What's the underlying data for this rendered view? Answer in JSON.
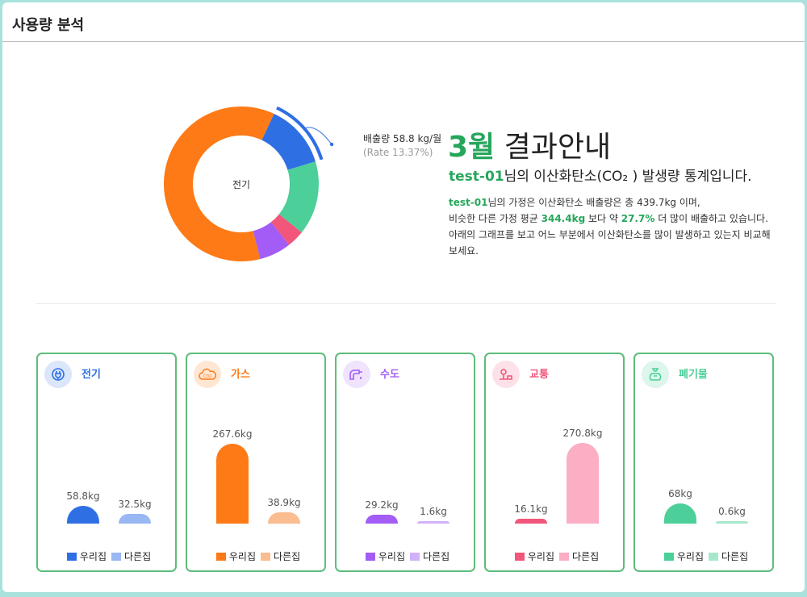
{
  "page": {
    "title": "사용량 분석"
  },
  "summary": {
    "month": "3월",
    "headline_rest": " 결과안내",
    "user": "test-01",
    "sub_text": "님의 이산화탄소(CO₂ ) 발생량 통계입니다.",
    "d1": "님의 가정은 이산화탄소 배출량은 총 439.7kg 이며,",
    "d2a": "비슷한 다른 가정 평균 ",
    "avg": "344.4kg",
    "d2b": " 보다 약 ",
    "pct": "27.7%",
    "d2c": " 더 많이 배출하고 있습니다.",
    "d3": "아래의 그래프를 보고 어느 부분에서 이산화탄소를 많이 발생하고 있는지 비교해 보세요."
  },
  "chart_data": [
    {
      "type": "pie",
      "center_label": "전기",
      "callout": {
        "main": "배출량 58.8 kg/월",
        "sub": "(Rate 13.37%)"
      },
      "slices": [
        {
          "label": "전기",
          "value": 58.8,
          "color": "#2f6fe4"
        },
        {
          "label": "폐기물",
          "value": 68,
          "color": "#4ccf98"
        },
        {
          "label": "교통",
          "value": 16.1,
          "color": "#f2567a"
        },
        {
          "label": "수도",
          "value": 29.2,
          "color": "#a35cf6"
        },
        {
          "label": "가스",
          "value": 267.6,
          "color": "#fd7a16"
        }
      ]
    },
    {
      "type": "bar",
      "title": "전기",
      "icon": "plug-icon",
      "categories": [
        "우리집",
        "다른집"
      ],
      "values": [
        58.8,
        32.5
      ],
      "labels": [
        "58.8kg",
        "32.5kg"
      ],
      "colors": [
        "#2f6fe4",
        "#98b7f3"
      ],
      "title_color": "#2f6fe4",
      "icon_bg": "#dbe6fb"
    },
    {
      "type": "bar",
      "title": "가스",
      "icon": "co2-cloud-icon",
      "categories": [
        "우리집",
        "다른집"
      ],
      "values": [
        267.6,
        38.9
      ],
      "labels": [
        "267.6kg",
        "38.9kg"
      ],
      "colors": [
        "#fd7a16",
        "#fbbc8f"
      ],
      "title_color": "#fd7a16",
      "icon_bg": "#ffe7d4"
    },
    {
      "type": "bar",
      "title": "수도",
      "icon": "faucet-icon",
      "categories": [
        "우리집",
        "다른집"
      ],
      "values": [
        29.2,
        1.6
      ],
      "labels": [
        "29.2kg",
        "1.6kg"
      ],
      "colors": [
        "#a35cf6",
        "#d2b1fb"
      ],
      "title_color": "#a35cf6",
      "icon_bg": "#efe3fd"
    },
    {
      "type": "bar",
      "title": "교통",
      "icon": "transport-icon",
      "categories": [
        "우리집",
        "다른집"
      ],
      "values": [
        16.1,
        270.8
      ],
      "labels": [
        "16.1kg",
        "270.8kg"
      ],
      "colors": [
        "#f2567a",
        "#fbaec4"
      ],
      "title_color": "#f2567a",
      "icon_bg": "#fde1e8"
    },
    {
      "type": "bar",
      "title": "폐기물",
      "icon": "waste-bag-icon",
      "categories": [
        "우리집",
        "다른집"
      ],
      "values": [
        68,
        0.6
      ],
      "labels": [
        "68kg",
        "0.6kg"
      ],
      "colors": [
        "#4ccf98",
        "#a6e8cb"
      ],
      "title_color": "#4ccf98",
      "icon_bg": "#dcf6eb"
    }
  ]
}
